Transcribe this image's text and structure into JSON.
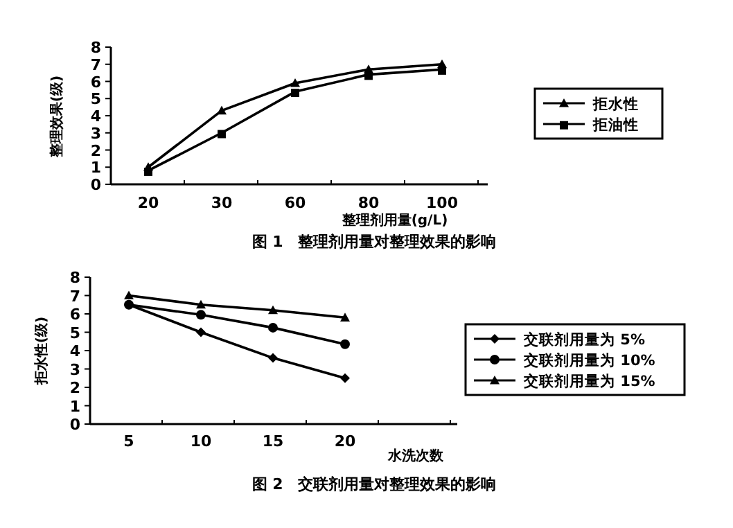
{
  "chart_data": [
    {
      "type": "line",
      "title": "图 1　整理剂用量对整理效果的影响",
      "xlabel": "整理剂用量(g/L)",
      "ylabel": "整理效果(级)",
      "categories": [
        "20",
        "30",
        "60",
        "80",
        "100"
      ],
      "ylim": [
        0,
        8
      ],
      "yticks": [
        0,
        1,
        2,
        3,
        4,
        5,
        6,
        7,
        8
      ],
      "legend": "right",
      "series": [
        {
          "name": "拒水性",
          "color": "#000000",
          "marker": "triangle",
          "values": [
            1.0,
            4.3,
            5.9,
            6.7,
            7.0
          ]
        },
        {
          "name": "拒油性",
          "color": "#000000",
          "marker": "square",
          "values": [
            0.8,
            3.0,
            5.4,
            6.4,
            6.7
          ]
        }
      ]
    },
    {
      "type": "line",
      "title": "图 2　交联剂用量对整理效果的影响",
      "xlabel": "水洗次数",
      "ylabel": "拒水性(级)",
      "categories": [
        "5",
        "10",
        "15",
        "20"
      ],
      "ylim": [
        0,
        8
      ],
      "yticks": [
        0,
        1,
        2,
        3,
        4,
        5,
        6,
        7,
        8
      ],
      "legend": "right",
      "series": [
        {
          "name": "交联剂用量为 5%",
          "color": "#000000",
          "marker": "diamond",
          "values": [
            6.5,
            5.0,
            3.6,
            2.5
          ]
        },
        {
          "name": "交联剂用量为 10%",
          "color": "#000000",
          "marker": "circle",
          "values": [
            6.5,
            5.95,
            5.25,
            4.35
          ]
        },
        {
          "name": "交联剂用量为 15%",
          "color": "#000000",
          "marker": "triangle",
          "values": [
            7.0,
            6.5,
            6.2,
            5.8
          ]
        }
      ]
    }
  ]
}
